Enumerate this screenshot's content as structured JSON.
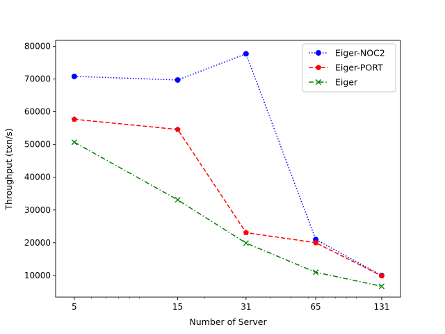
{
  "chart_data": {
    "type": "line",
    "x_scale": "log",
    "x": [
      5,
      15,
      31,
      65,
      131
    ],
    "xticks": [
      "5",
      "15",
      "31",
      "65",
      "131"
    ],
    "xlabel": "Number of Server",
    "ylabel": "Throughput (txn/s)",
    "ylim": [
      3400,
      81800
    ],
    "yticks": [
      10000,
      20000,
      30000,
      40000,
      50000,
      60000,
      70000,
      80000
    ],
    "grid": false,
    "legend_position": "top-right",
    "series": [
      {
        "name": "Eiger-NOC2",
        "values": [
          70800,
          69700,
          77700,
          21000,
          10000
        ],
        "color": "#0000ff",
        "linestyle": "dotted",
        "marker": "circle"
      },
      {
        "name": "Eiger-PORT",
        "values": [
          57700,
          54600,
          23100,
          20000,
          9900
        ],
        "color": "#ff0000",
        "linestyle": "dashed",
        "marker": "pentagon"
      },
      {
        "name": "Eiger",
        "values": [
          50700,
          33100,
          19900,
          11000,
          6700
        ],
        "color": "#008000",
        "linestyle": "dashdot",
        "marker": "x"
      }
    ]
  }
}
